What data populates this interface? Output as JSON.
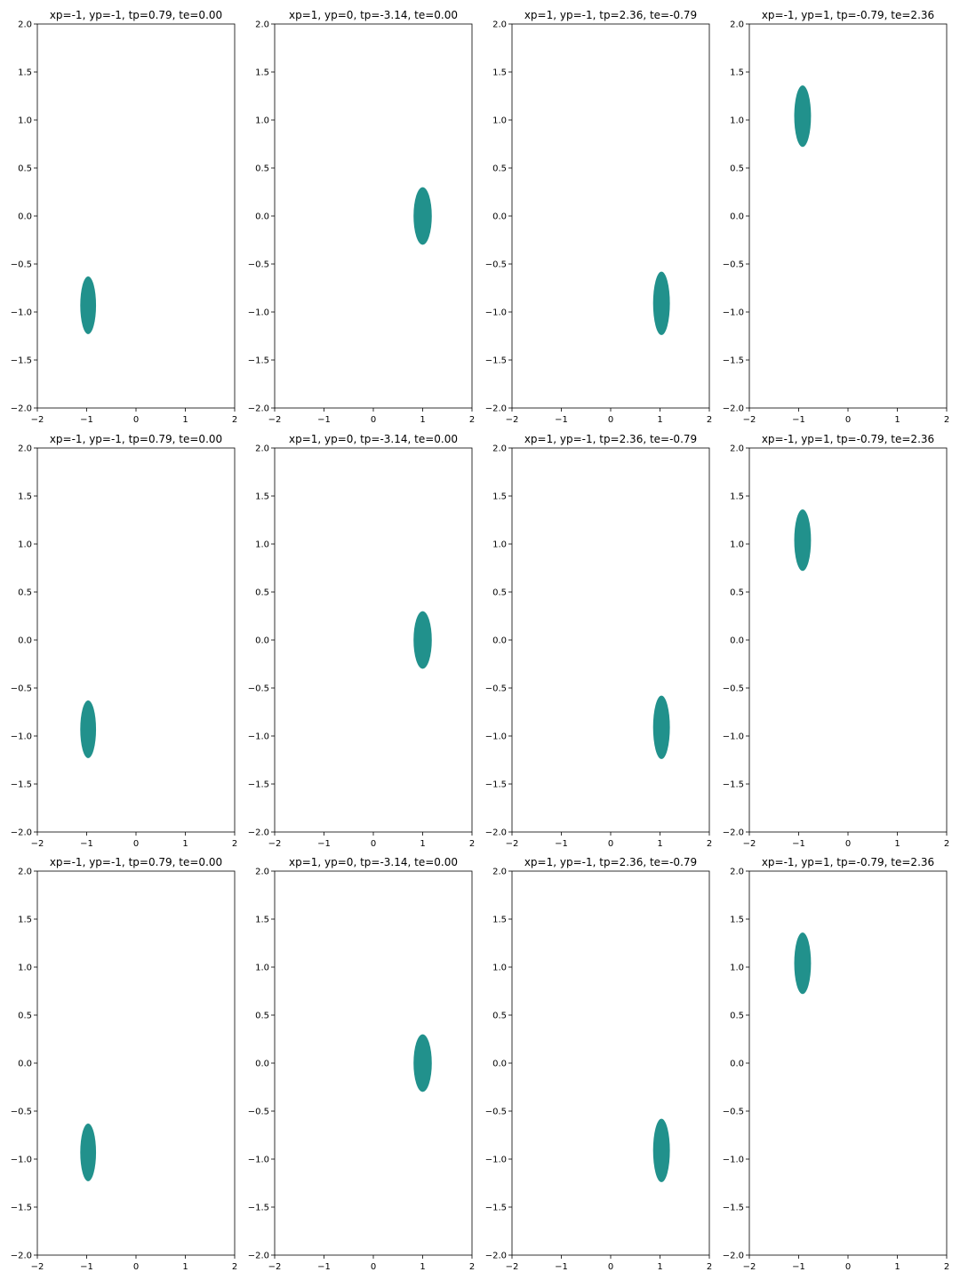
{
  "figure": {
    "subplot_titles": [
      "xp=-1, yp=-1, tp=0.79, te=0.00",
      "xp=1, yp=0, tp=-3.14, te=0.00",
      "xp=1, yp=-1, tp=2.36, te=-0.79",
      "xp=-1, yp=1, tp=-0.79, te=2.36"
    ]
  },
  "chart_data": [
    {
      "type": "area",
      "title": "xp=-1, yp=-1, tp=0.79, te=0.00",
      "xlim": [
        -2,
        2
      ],
      "ylim": [
        -2,
        2
      ],
      "x_ticks": [
        -2,
        -1,
        0,
        1,
        2
      ],
      "x_tick_labels": [
        "−2",
        "−1",
        "0",
        "1",
        "2"
      ],
      "y_ticks": [
        -2,
        -1.5,
        -1,
        -0.5,
        0,
        0.5,
        1,
        1.5,
        2
      ],
      "y_tick_labels": [
        "−2.0",
        "−1.5",
        "−1.0",
        "−0.5",
        "0.0",
        "0.5",
        "1.0",
        "1.5",
        "2.0"
      ],
      "grid": false,
      "color": "#21918c",
      "region": {
        "center": [
          -0.97,
          -0.93
        ],
        "radius_x": 0.32,
        "radius_y": 0.3
      }
    },
    {
      "type": "area",
      "title": "xp=1, yp=0, tp=-3.14, te=0.00",
      "xlim": [
        -2,
        2
      ],
      "ylim": [
        -2,
        2
      ],
      "x_ticks": [
        -2,
        -1,
        0,
        1,
        2
      ],
      "x_tick_labels": [
        "−2",
        "−1",
        "0",
        "1",
        "2"
      ],
      "y_ticks": [
        -2,
        -1.5,
        -1,
        -0.5,
        0,
        0.5,
        1,
        1.5,
        2
      ],
      "y_tick_labels": [
        "−2.0",
        "−1.5",
        "−1.0",
        "−0.5",
        "0.0",
        "0.5",
        "1.0",
        "1.5",
        "2.0"
      ],
      "grid": false,
      "color": "#21918c",
      "region": {
        "center": [
          1.0,
          0.0
        ],
        "radius_x": 0.37,
        "radius_y": 0.3
      }
    },
    {
      "type": "area",
      "title": "xp=1, yp=-1, tp=2.36, te=-0.79",
      "xlim": [
        -2,
        2
      ],
      "ylim": [
        -2,
        2
      ],
      "x_ticks": [
        -2,
        -1,
        0,
        1,
        2
      ],
      "x_tick_labels": [
        "−2",
        "−1",
        "0",
        "1",
        "2"
      ],
      "y_ticks": [
        -2,
        -1.5,
        -1,
        -0.5,
        0,
        0.5,
        1,
        1.5,
        2
      ],
      "y_tick_labels": [
        "−2.0",
        "−1.5",
        "−1.0",
        "−0.5",
        "0.0",
        "0.5",
        "1.0",
        "1.5",
        "2.0"
      ],
      "grid": false,
      "color": "#21918c",
      "region": {
        "center": [
          1.03,
          -0.91
        ],
        "radius_x": 0.34,
        "radius_y": 0.33
      }
    },
    {
      "type": "area",
      "title": "xp=-1, yp=1, tp=-0.79, te=2.36",
      "xlim": [
        -2,
        2
      ],
      "ylim": [
        -2,
        2
      ],
      "x_ticks": [
        -2,
        -1,
        0,
        1,
        2
      ],
      "x_tick_labels": [
        "−2",
        "−1",
        "0",
        "1",
        "2"
      ],
      "y_ticks": [
        -2,
        -1.5,
        -1,
        -0.5,
        0,
        0.5,
        1,
        1.5,
        2
      ],
      "y_tick_labels": [
        "−2.0",
        "−1.5",
        "−1.0",
        "−0.5",
        "0.0",
        "0.5",
        "1.0",
        "1.5",
        "2.0"
      ],
      "grid": false,
      "color": "#21918c",
      "region": {
        "center": [
          -0.92,
          1.04
        ],
        "radius_x": 0.34,
        "radius_y": 0.32
      }
    },
    {
      "type": "area",
      "title": "xp=-1, yp=-1, tp=0.79, te=0.00",
      "xlim": [
        -2,
        2
      ],
      "ylim": [
        -2,
        2
      ],
      "x_ticks": [
        -2,
        -1,
        0,
        1,
        2
      ],
      "x_tick_labels": [
        "−2",
        "−1",
        "0",
        "1",
        "2"
      ],
      "y_ticks": [
        -2,
        -1.5,
        -1,
        -0.5,
        0,
        0.5,
        1,
        1.5,
        2
      ],
      "y_tick_labels": [
        "−2.0",
        "−1.5",
        "−1.0",
        "−0.5",
        "0.0",
        "0.5",
        "1.0",
        "1.5",
        "2.0"
      ],
      "grid": false,
      "color": "#21918c",
      "region": {
        "center": [
          -0.97,
          -0.93
        ],
        "radius_x": 0.32,
        "radius_y": 0.3
      }
    },
    {
      "type": "area",
      "title": "xp=1, yp=0, tp=-3.14, te=0.00",
      "xlim": [
        -2,
        2
      ],
      "ylim": [
        -2,
        2
      ],
      "x_ticks": [
        -2,
        -1,
        0,
        1,
        2
      ],
      "x_tick_labels": [
        "−2",
        "−1",
        "0",
        "1",
        "2"
      ],
      "y_ticks": [
        -2,
        -1.5,
        -1,
        -0.5,
        0,
        0.5,
        1,
        1.5,
        2
      ],
      "y_tick_labels": [
        "−2.0",
        "−1.5",
        "−1.0",
        "−0.5",
        "0.0",
        "0.5",
        "1.0",
        "1.5",
        "2.0"
      ],
      "grid": false,
      "color": "#21918c",
      "region": {
        "center": [
          1.0,
          0.0
        ],
        "radius_x": 0.37,
        "radius_y": 0.3
      }
    },
    {
      "type": "area",
      "title": "xp=1, yp=-1, tp=2.36, te=-0.79",
      "xlim": [
        -2,
        2
      ],
      "ylim": [
        -2,
        2
      ],
      "x_ticks": [
        -2,
        -1,
        0,
        1,
        2
      ],
      "x_tick_labels": [
        "−2",
        "−1",
        "0",
        "1",
        "2"
      ],
      "y_ticks": [
        -2,
        -1.5,
        -1,
        -0.5,
        0,
        0.5,
        1,
        1.5,
        2
      ],
      "y_tick_labels": [
        "−2.0",
        "−1.5",
        "−1.0",
        "−0.5",
        "0.0",
        "0.5",
        "1.0",
        "1.5",
        "2.0"
      ],
      "grid": false,
      "color": "#21918c",
      "region": {
        "center": [
          1.03,
          -0.91
        ],
        "radius_x": 0.34,
        "radius_y": 0.33
      }
    },
    {
      "type": "area",
      "title": "xp=-1, yp=1, tp=-0.79, te=2.36",
      "xlim": [
        -2,
        2
      ],
      "ylim": [
        -2,
        2
      ],
      "x_ticks": [
        -2,
        -1,
        0,
        1,
        2
      ],
      "x_tick_labels": [
        "−2",
        "−1",
        "0",
        "1",
        "2"
      ],
      "y_ticks": [
        -2,
        -1.5,
        -1,
        -0.5,
        0,
        0.5,
        1,
        1.5,
        2
      ],
      "y_tick_labels": [
        "−2.0",
        "−1.5",
        "−1.0",
        "−0.5",
        "0.0",
        "0.5",
        "1.0",
        "1.5",
        "2.0"
      ],
      "grid": false,
      "color": "#21918c",
      "region": {
        "center": [
          -0.92,
          1.04
        ],
        "radius_x": 0.34,
        "radius_y": 0.32
      }
    },
    {
      "type": "area",
      "title": "xp=-1, yp=-1, tp=0.79, te=0.00",
      "xlim": [
        -2,
        2
      ],
      "ylim": [
        -2,
        2
      ],
      "x_ticks": [
        -2,
        -1,
        0,
        1,
        2
      ],
      "x_tick_labels": [
        "−2",
        "−1",
        "0",
        "1",
        "2"
      ],
      "y_ticks": [
        -2,
        -1.5,
        -1,
        -0.5,
        0,
        0.5,
        1,
        1.5,
        2
      ],
      "y_tick_labels": [
        "−2.0",
        "−1.5",
        "−1.0",
        "−0.5",
        "0.0",
        "0.5",
        "1.0",
        "1.5",
        "2.0"
      ],
      "grid": false,
      "color": "#21918c",
      "region": {
        "center": [
          -0.97,
          -0.93
        ],
        "radius_x": 0.32,
        "radius_y": 0.3
      }
    },
    {
      "type": "area",
      "title": "xp=1, yp=0, tp=-3.14, te=0.00",
      "xlim": [
        -2,
        2
      ],
      "ylim": [
        -2,
        2
      ],
      "x_ticks": [
        -2,
        -1,
        0,
        1,
        2
      ],
      "x_tick_labels": [
        "−2",
        "−1",
        "0",
        "1",
        "2"
      ],
      "y_ticks": [
        -2,
        -1.5,
        -1,
        -0.5,
        0,
        0.5,
        1,
        1.5,
        2
      ],
      "y_tick_labels": [
        "−2.0",
        "−1.5",
        "−1.0",
        "−0.5",
        "0.0",
        "0.5",
        "1.0",
        "1.5",
        "2.0"
      ],
      "grid": false,
      "color": "#21918c",
      "region": {
        "center": [
          1.0,
          0.0
        ],
        "radius_x": 0.37,
        "radius_y": 0.3
      }
    },
    {
      "type": "area",
      "title": "xp=1, yp=-1, tp=2.36, te=-0.79",
      "xlim": [
        -2,
        2
      ],
      "ylim": [
        -2,
        2
      ],
      "x_ticks": [
        -2,
        -1,
        0,
        1,
        2
      ],
      "x_tick_labels": [
        "−2",
        "−1",
        "0",
        "1",
        "2"
      ],
      "y_ticks": [
        -2,
        -1.5,
        -1,
        -0.5,
        0,
        0.5,
        1,
        1.5,
        2
      ],
      "y_tick_labels": [
        "−2.0",
        "−1.5",
        "−1.0",
        "−0.5",
        "0.0",
        "0.5",
        "1.0",
        "1.5",
        "2.0"
      ],
      "grid": false,
      "color": "#21918c",
      "region": {
        "center": [
          1.03,
          -0.91
        ],
        "radius_x": 0.34,
        "radius_y": 0.33
      }
    },
    {
      "type": "area",
      "title": "xp=-1, yp=1, tp=-0.79, te=2.36",
      "xlim": [
        -2,
        2
      ],
      "ylim": [
        -2,
        2
      ],
      "x_ticks": [
        -2,
        -1,
        0,
        1,
        2
      ],
      "x_tick_labels": [
        "−2",
        "−1",
        "0",
        "1",
        "2"
      ],
      "y_ticks": [
        -2,
        -1.5,
        -1,
        -0.5,
        0,
        0.5,
        1,
        1.5,
        2
      ],
      "y_tick_labels": [
        "−2.0",
        "−1.5",
        "−1.0",
        "−0.5",
        "0.0",
        "0.5",
        "1.0",
        "1.5",
        "2.0"
      ],
      "grid": false,
      "color": "#21918c",
      "region": {
        "center": [
          -0.92,
          1.04
        ],
        "radius_x": 0.34,
        "radius_y": 0.32
      }
    }
  ]
}
